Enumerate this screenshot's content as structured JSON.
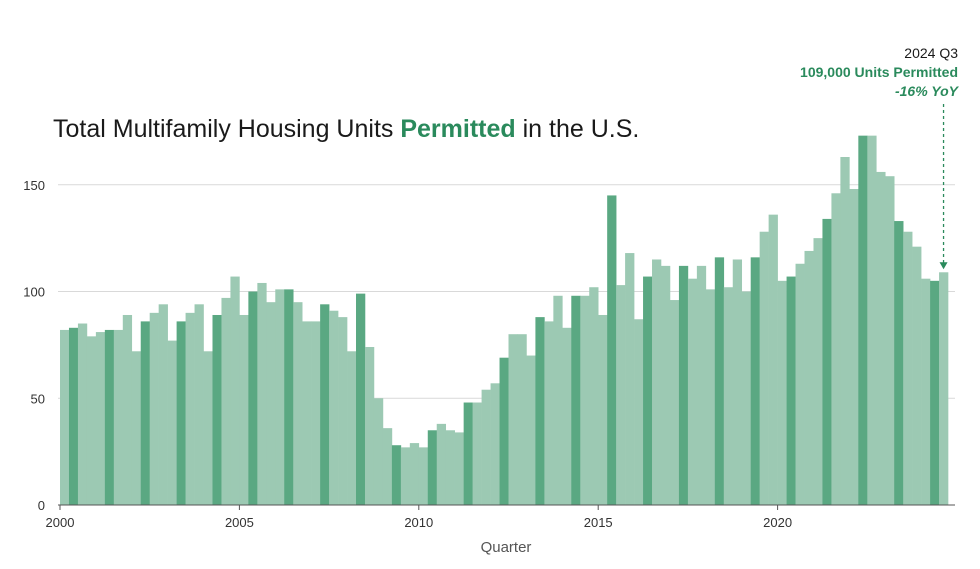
{
  "title": {
    "before": "Total Multifamily Housing Units ",
    "highlight": "Permitted",
    "after": " in the U.S."
  },
  "annotation": {
    "period": "2024 Q3",
    "value": "109,000 Units Permitted",
    "change": "-16% YoY"
  },
  "colors": {
    "light_bar": "#9cc9b3",
    "dark_bar": "#5aa882",
    "accent": "#2a8a5c",
    "grid": "#d9d9d9"
  },
  "chart_data": {
    "type": "bar",
    "xlabel": "Quarter",
    "ylabel": "",
    "ylim": [
      0,
      180
    ],
    "yticks": [
      0,
      50,
      100,
      150
    ],
    "xticks": [
      "2000",
      "2005",
      "2010",
      "2015",
      "2020"
    ],
    "grid": true,
    "start_period": "2000 Q1",
    "highlight_quarter": "Q2",
    "values": [
      82,
      83,
      85,
      79,
      81,
      82,
      82,
      89,
      72,
      86,
      90,
      94,
      77,
      86,
      90,
      94,
      72,
      89,
      97,
      107,
      89,
      100,
      104,
      95,
      101,
      101,
      95,
      86,
      86,
      94,
      91,
      88,
      72,
      99,
      74,
      50,
      36,
      28,
      27,
      29,
      27,
      35,
      38,
      35,
      34,
      48,
      48,
      54,
      57,
      69,
      80,
      80,
      70,
      88,
      86,
      98,
      83,
      98,
      98,
      102,
      89,
      145,
      103,
      118,
      87,
      107,
      115,
      112,
      96,
      112,
      106,
      112,
      101,
      116,
      102,
      115,
      100,
      116,
      128,
      136,
      105,
      107,
      113,
      119,
      125,
      134,
      146,
      163,
      148,
      173,
      173,
      156,
      154,
      133,
      128,
      121,
      106,
      105,
      109
    ]
  }
}
